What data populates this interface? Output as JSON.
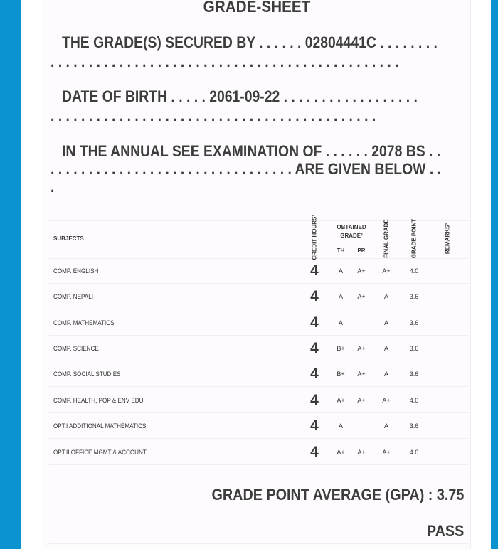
{
  "title": "GRADE-SHEET",
  "secured_by": {
    "lines": [
      "THE GRADE(S) SECURED BY . . . . . . 02804441C . . . . . . . .",
      ". . . . . . . . . . . . . . . . . . . . . . . . . . . . . . . . . . . . . . . . . . . . . ."
    ]
  },
  "dob": {
    "lines": [
      "DATE OF BIRTH . . . . . 2061-09-22 . . . . . . . . . . . . . . . . . .",
      ". . . . . . . . . . . . . . . . . . . . . . . . . . . . . . . . . . . . . . . . . . ."
    ]
  },
  "exam": {
    "lines": [
      "IN THE ANNUAL SEE EXAMINATION OF . . . . . . 2078 BS . .",
      ". . . . . . . . . . . . . . . . . . . . . . . . . . . . . . . . ARE GIVEN BELOW . .",
      "."
    ]
  },
  "table": {
    "headers": {
      "subjects": "SUBJECTS",
      "credit": "CREDIT HOURS¹",
      "obtained": "OBTAINED GRADE²",
      "th": "TH",
      "pr": "PR",
      "final": "FINAL GRADE",
      "gp": "GRADE POINT",
      "remarks": "REMARKS³"
    },
    "rows": [
      {
        "subject": "COMP. ENGLISH",
        "credit": "4",
        "th": "A",
        "pr": "A+",
        "final": "A+",
        "gp": "4.0"
      },
      {
        "subject": "COMP. NEPALI",
        "credit": "4",
        "th": "A",
        "pr": "A+",
        "final": "A",
        "gp": "3.6"
      },
      {
        "subject": "COMP. MATHEMATICS",
        "credit": "4",
        "th": "A",
        "pr": "",
        "final": "A",
        "gp": "3.6"
      },
      {
        "subject": "COMP. SCIENCE",
        "credit": "4",
        "th": "B+",
        "pr": "A+",
        "final": "A",
        "gp": "3.6"
      },
      {
        "subject": "COMP. SOCIAL STUDIES",
        "credit": "4",
        "th": "B+",
        "pr": "A+",
        "final": "A",
        "gp": "3.6"
      },
      {
        "subject": "COMP. HEALTH, POP & ENV EDU",
        "credit": "4",
        "th": "A+",
        "pr": "A+",
        "final": "A+",
        "gp": "4.0"
      },
      {
        "subject": "OPT.I ADDITIONAL MATHEMATICS",
        "credit": "4",
        "th": "A",
        "pr": "",
        "final": "A",
        "gp": "3.6"
      },
      {
        "subject": "OPT.II OFFICE MGMT & ACCOUNT",
        "credit": "4",
        "th": "A+",
        "pr": "A+",
        "final": "A+",
        "gp": "4.0"
      }
    ]
  },
  "gpa": "GRADE POINT AVERAGE (GPA) : 3.75",
  "result": "PASS",
  "colors": {
    "side_bars": "#0a93cf",
    "text": "#3d3d3d"
  }
}
